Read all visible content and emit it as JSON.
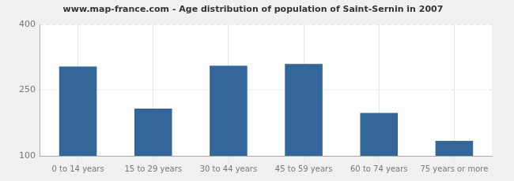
{
  "chart_data": {
    "type": "bar",
    "title": "www.map-france.com - Age distribution of population of Saint-Sernin in 2007",
    "categories": [
      "0 to 14 years",
      "15 to 29 years",
      "30 to 44 years",
      "45 to 59 years",
      "60 to 74 years",
      "75 years or more"
    ],
    "values": [
      304,
      208,
      306,
      310,
      198,
      134
    ],
    "color": "#336699",
    "ylim": [
      100,
      400
    ],
    "yticks": [
      100,
      250,
      400
    ],
    "grid": true
  }
}
